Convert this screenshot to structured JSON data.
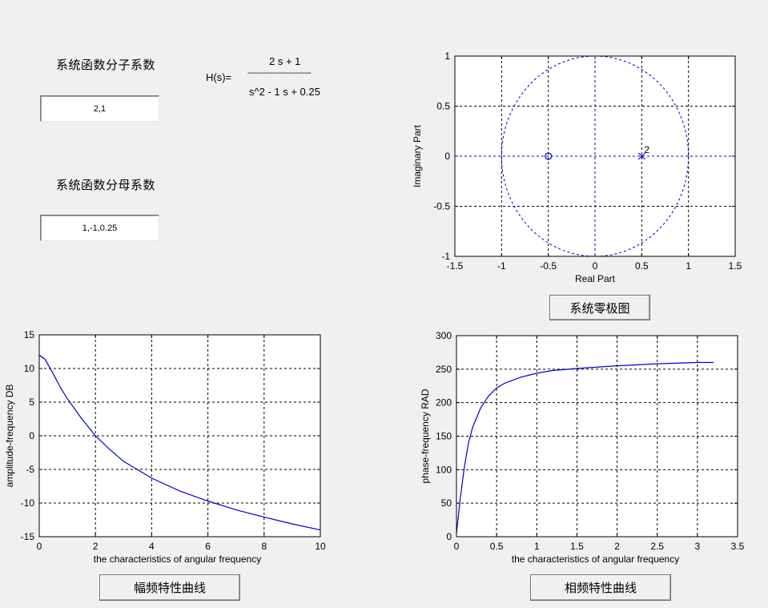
{
  "numerator_panel": {
    "label": "系统函数分子系数",
    "value": "2,1"
  },
  "denominator_panel": {
    "label": "系统函数分母系数",
    "value": "1,-1,0.25"
  },
  "transfer_function": {
    "lhs": "H(s)=",
    "numerator": "2 s + 1",
    "divider": "----------------------------",
    "denominator": "s^2 - 1 s + 0.25"
  },
  "buttons": {
    "pole_zero": "系统零极图",
    "amplitude": "幅频特性曲线",
    "phase": "相频特性曲线"
  },
  "colors": {
    "plot_line": "#0000cc",
    "grid": "#000000",
    "axes_bg": "#ffffff",
    "figure_bg": "#f0f0f0"
  },
  "chart_data": [
    {
      "type": "scatter",
      "xlabel": "Real Part",
      "ylabel": "Imaginary Part",
      "xlim": [
        -1.5,
        1.5
      ],
      "ylim": [
        -1,
        1
      ],
      "xticks": [
        "-1.5",
        "-1",
        "-0.5",
        "0",
        "0.5",
        "1",
        "1.5"
      ],
      "yticks": [
        "1",
        "0.5",
        "0",
        "-0.5",
        "-1"
      ],
      "grid": true,
      "unit_circle": true,
      "zeros": [
        {
          "re": -0.5,
          "im": 0
        }
      ],
      "poles": [
        {
          "re": 0.5,
          "im": 0,
          "multiplicity": "2"
        }
      ]
    },
    {
      "type": "line",
      "xlabel": "the characteristics of angular frequency",
      "ylabel": "amplitude-frequency DB",
      "xlim": [
        0,
        10
      ],
      "ylim": [
        -15,
        15
      ],
      "xticks": [
        "0",
        "2",
        "4",
        "6",
        "8",
        "10"
      ],
      "yticks": [
        "15",
        "10",
        "5",
        "0",
        "-5",
        "-10",
        "-15"
      ],
      "grid": true,
      "x": [
        0,
        0.2,
        0.5,
        0.75,
        1,
        1.5,
        2,
        2.5,
        3,
        4,
        5,
        6,
        7,
        8,
        9,
        10
      ],
      "y": [
        12.0,
        11.4,
        9.2,
        7.2,
        5.5,
        2.6,
        0.0,
        -2.0,
        -3.8,
        -6.3,
        -8.2,
        -9.7,
        -11.0,
        -12.1,
        -13.1,
        -14.0
      ]
    },
    {
      "type": "line",
      "xlabel": "the characteristics of angular frequency",
      "ylabel": "phase-frequency RAD",
      "xlim": [
        0,
        3.5
      ],
      "ylim": [
        0,
        300
      ],
      "xticks": [
        "0",
        "0.5",
        "1",
        "1.5",
        "2",
        "2.5",
        "3",
        "3.5"
      ],
      "yticks": [
        "300",
        "250",
        "200",
        "150",
        "100",
        "50",
        "0"
      ],
      "grid": true,
      "x": [
        0,
        0.05,
        0.1,
        0.15,
        0.2,
        0.3,
        0.4,
        0.5,
        0.6,
        0.8,
        1.0,
        1.2,
        1.5,
        2.0,
        2.5,
        3.0,
        3.2
      ],
      "y": [
        5,
        60,
        105,
        140,
        163,
        192,
        210,
        222,
        229,
        238,
        244,
        248,
        251,
        255,
        258,
        260,
        260
      ]
    }
  ]
}
